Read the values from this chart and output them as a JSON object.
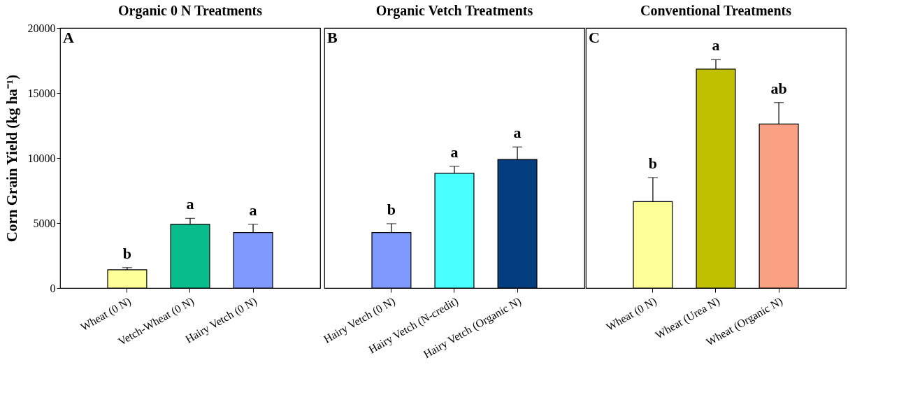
{
  "chart_data": [
    {
      "type": "bar",
      "title": "Organic 0 N Treatments",
      "ylabel": "Corn Grain Yield (kg ha⁻¹)",
      "categories": [
        "Wheat (0 N)",
        "Vetch-Wheat (0 N)",
        "Hairy Vetch (0 N)"
      ],
      "values": [
        1400,
        4900,
        4270
      ],
      "colors": [
        "#ffff99",
        "#08bc8c",
        "#8099ff"
      ],
      "errors": [
        [
          1400,
          1570
        ],
        [
          4900,
          5360
        ],
        [
          4270,
          4910
        ]
      ],
      "ylim": [
        0,
        20000
      ],
      "yticks": [
        0,
        {
          "value": 5000,
          "label": "5000"
        },
        {
          "value": 10000,
          "label": "10000"
        },
        {
          "value": 15000,
          "label": "15000"
        },
        {
          "value": 20000,
          "label": "20000"
        }
      ],
      "grid": false,
      "annotations": [
        "A",
        {
          "text": "b",
          "x": "Wheat (0 N)",
          "y": 1570
        },
        {
          "text": "a",
          "x": "Vetch-Wheat (0 N)",
          "y": 5360
        },
        {
          "text": "a",
          "x": "Hairy Vetch (0 N)",
          "y": 4910
        }
      ]
    },
    {
      "type": "bar",
      "title": "Organic Vetch Treatments",
      "categories": [
        "Hairy Vetch (0 N)",
        "Hairy Vetch (N-credit)",
        "Hairy Vetch (Organic N)"
      ],
      "values": [
        4270,
        8820,
        9890
      ],
      "colors": [
        "#8099ff",
        "#4affff",
        "#033d7d"
      ],
      "errors": [
        [
          4270,
          4950
        ],
        [
          8820,
          9360
        ],
        [
          9890,
          10850
        ]
      ],
      "ylim": [
        0,
        20000
      ],
      "tick_labels": "x",
      "grid": false,
      "annotations": [
        "B",
        {
          "text": "b",
          "x": "Hairy Vetch (0 N)",
          "y": 4950
        },
        {
          "text": "a",
          "x": "Hairy Vetch (N-credit)",
          "y": 9360
        },
        {
          "text": "a",
          "x": "Hairy Vetch (Organic N)",
          "y": 10850
        }
      ]
    },
    {
      "type": "bar",
      "title": "Conventional Treatments",
      "categories": [
        "Wheat (0 N)",
        "Wheat (Urea N)",
        "Wheat (Organic N)"
      ],
      "values": [
        6650,
        16830,
        12610
      ],
      "colors": [
        "#ffff99",
        "#c0c000",
        "#f9a182"
      ],
      "errors": [
        [
          6650,
          8500
        ],
        [
          16830,
          17560
        ],
        [
          12610,
          14260
        ]
      ],
      "ylim": [
        0,
        20000
      ],
      "tick_labels": "x",
      "grid": false,
      "annotations": [
        "C",
        {
          "text": "b",
          "x": "Wheat (0 N)",
          "y": 8500
        },
        {
          "text": "a",
          "x": "Wheat (Urea N)",
          "y": 17560
        },
        {
          "text": "ab",
          "x": "Wheat (Organic N)",
          "y": 14260
        }
      ]
    }
  ]
}
